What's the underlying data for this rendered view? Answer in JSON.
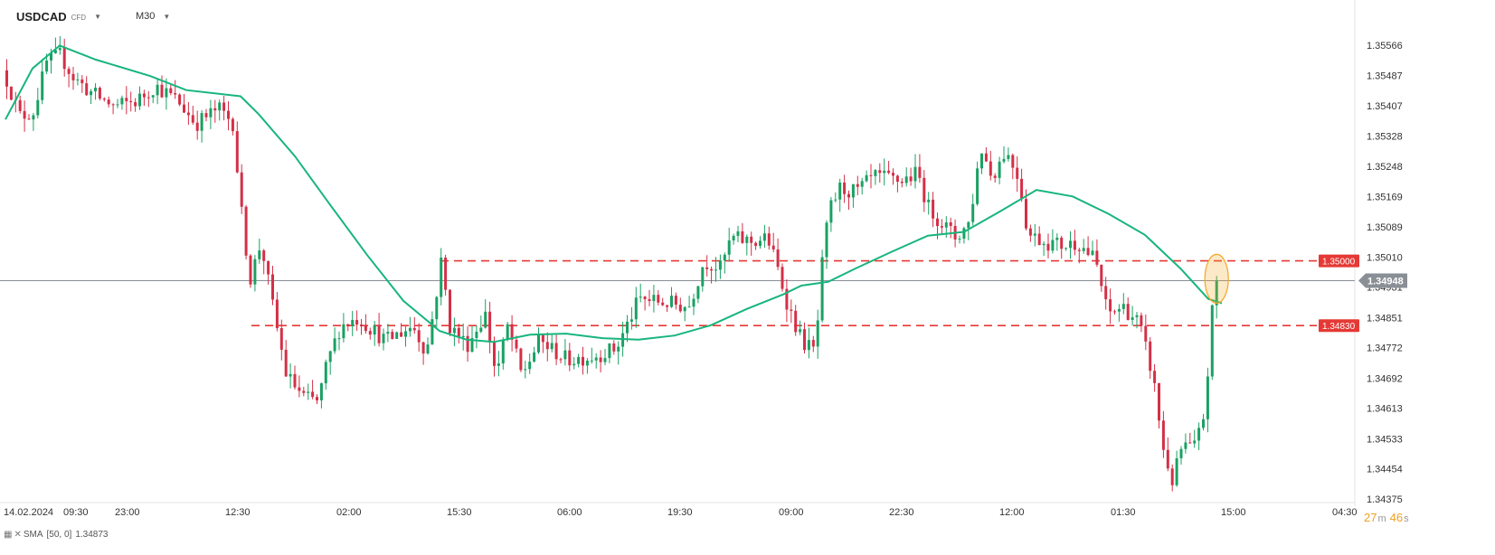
{
  "header": {
    "symbol": "USDCAD",
    "symbol_type": "CFD",
    "timeframe": "M30"
  },
  "indicator": {
    "label": "SMA",
    "params": "[50, 0]",
    "value": "1.34873",
    "color": "#17b57d"
  },
  "countdown": {
    "minutes": "27",
    "min_unit": "m",
    "seconds": "46",
    "sec_unit": "s"
  },
  "chart_data": {
    "type": "candlestick",
    "instrument": "USDCAD",
    "timeframe": "M30",
    "ylim": [
      1.34375,
      1.3564
    ],
    "y_ticks": [
      "1.35566",
      "1.35487",
      "1.35407",
      "1.35328",
      "1.35248",
      "1.35169",
      "1.35089",
      "1.35010",
      "1.34931",
      "1.34851",
      "1.34772",
      "1.34692",
      "1.34613",
      "1.34533",
      "1.34454",
      "1.34375"
    ],
    "x_ticks": [
      "14.02.2024",
      "09:30",
      "23:00",
      "12:30",
      "02:00",
      "15:30",
      "06:00",
      "19:30",
      "09:00",
      "22:30",
      "12:00",
      "01:30",
      "15:00",
      "04:30"
    ],
    "current_price": "1.34948",
    "levels": [
      {
        "label": "1.35000",
        "value": 1.35
      },
      {
        "label": "1.34830",
        "value": 1.3483
      }
    ],
    "colors": {
      "up": "#1aa163",
      "down": "#d33047",
      "sma": "#17b57d",
      "level": "#e53935",
      "current": "#8a8f96",
      "highlight": "#f5a623"
    },
    "sma_key": [
      [
        0,
        1.35371
      ],
      [
        30,
        1.35505
      ],
      [
        60,
        1.35565
      ],
      [
        100,
        1.35528
      ],
      [
        160,
        1.35485
      ],
      [
        200,
        1.35448
      ],
      [
        260,
        1.35432
      ],
      [
        280,
        1.35385
      ],
      [
        320,
        1.35275
      ],
      [
        360,
        1.35144
      ],
      [
        400,
        1.35015
      ],
      [
        440,
        1.34895
      ],
      [
        480,
        1.34816
      ],
      [
        510,
        1.34793
      ],
      [
        540,
        1.34787
      ],
      [
        580,
        1.34806
      ],
      [
        620,
        1.34809
      ],
      [
        660,
        1.34797
      ],
      [
        700,
        1.34793
      ],
      [
        740,
        1.34804
      ],
      [
        780,
        1.34831
      ],
      [
        820,
        1.34874
      ],
      [
        860,
        1.34912
      ],
      [
        880,
        1.34935
      ],
      [
        910,
        1.34945
      ],
      [
        940,
        1.3498
      ],
      [
        980,
        1.35024
      ],
      [
        1020,
        1.35066
      ],
      [
        1060,
        1.35076
      ],
      [
        1100,
        1.3513
      ],
      [
        1140,
        1.35186
      ],
      [
        1180,
        1.35169
      ],
      [
        1220,
        1.35123
      ],
      [
        1260,
        1.35068
      ],
      [
        1300,
        1.34978
      ],
      [
        1330,
        1.349
      ],
      [
        1345,
        1.34889
      ]
    ],
    "candle_anchors": [
      [
        0,
        1.3553
      ],
      [
        12,
        1.3547
      ],
      [
        25,
        1.3538
      ],
      [
        40,
        1.3539
      ],
      [
        55,
        1.3552
      ],
      [
        70,
        1.3554
      ],
      [
        85,
        1.3548
      ],
      [
        105,
        1.3544
      ],
      [
        130,
        1.35405
      ],
      [
        155,
        1.3542
      ],
      [
        175,
        1.3546
      ],
      [
        200,
        1.3542
      ],
      [
        220,
        1.3536
      ],
      [
        245,
        1.354
      ],
      [
        262,
        1.3536
      ],
      [
        268,
        1.3517
      ],
      [
        280,
        1.3495
      ],
      [
        292,
        1.3505
      ],
      [
        305,
        1.3488
      ],
      [
        320,
        1.347
      ],
      [
        340,
        1.3464
      ],
      [
        355,
        1.3463
      ],
      [
        365,
        1.3473
      ],
      [
        380,
        1.3483
      ],
      [
        400,
        1.3485
      ],
      [
        430,
        1.3479
      ],
      [
        460,
        1.3483
      ],
      [
        475,
        1.3476
      ],
      [
        485,
        1.349
      ],
      [
        492,
        1.3501
      ],
      [
        500,
        1.3483
      ],
      [
        520,
        1.3478
      ],
      [
        540,
        1.3486
      ],
      [
        552,
        1.347
      ],
      [
        565,
        1.3483
      ],
      [
        580,
        1.347
      ],
      [
        600,
        1.3479
      ],
      [
        630,
        1.3474
      ],
      [
        660,
        1.3475
      ],
      [
        685,
        1.3477
      ],
      [
        710,
        1.349
      ],
      [
        740,
        1.3489
      ],
      [
        765,
        1.3488
      ],
      [
        782,
        1.35
      ],
      [
        800,
        1.3498
      ],
      [
        812,
        1.3506
      ],
      [
        835,
        1.3505
      ],
      [
        852,
        1.3506
      ],
      [
        862,
        1.3499
      ],
      [
        875,
        1.3488
      ],
      [
        890,
        1.3479
      ],
      [
        905,
        1.3476
      ],
      [
        912,
        1.3498
      ],
      [
        920,
        1.3513
      ],
      [
        932,
        1.3519
      ],
      [
        950,
        1.3518
      ],
      [
        970,
        1.3522
      ],
      [
        1000,
        1.3521
      ],
      [
        1018,
        1.3523
      ],
      [
        1030,
        1.3514
      ],
      [
        1060,
        1.3506
      ],
      [
        1075,
        1.351
      ],
      [
        1088,
        1.353
      ],
      [
        1100,
        1.3522
      ],
      [
        1115,
        1.3529
      ],
      [
        1130,
        1.3522
      ],
      [
        1140,
        1.3507
      ],
      [
        1160,
        1.3505
      ],
      [
        1180,
        1.3504
      ],
      [
        1195,
        1.3505
      ],
      [
        1215,
        1.35
      ],
      [
        1228,
        1.3486
      ],
      [
        1245,
        1.3488
      ],
      [
        1262,
        1.3484
      ],
      [
        1278,
        1.347
      ],
      [
        1290,
        1.345
      ],
      [
        1300,
        1.3442
      ],
      [
        1310,
        1.3451
      ],
      [
        1325,
        1.3451
      ],
      [
        1335,
        1.346
      ],
      [
        1340,
        1.3474
      ],
      [
        1345,
        1.3491
      ],
      [
        1348,
        1.34948
      ]
    ]
  }
}
